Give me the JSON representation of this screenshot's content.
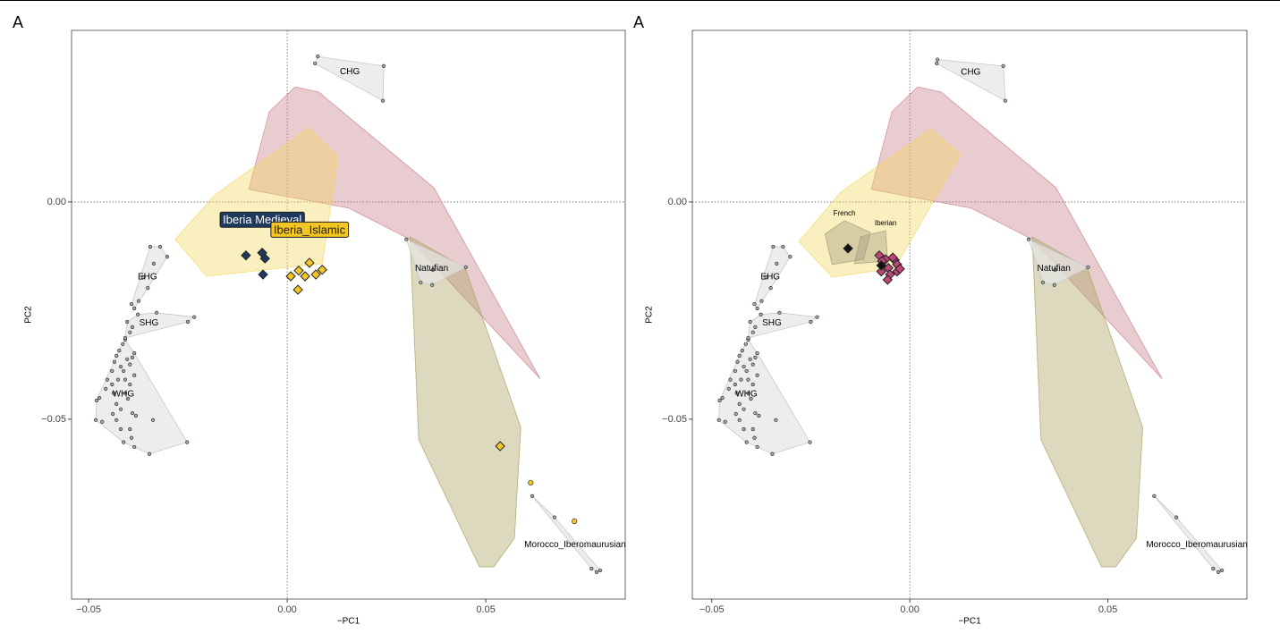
{
  "chart_data": [
    {
      "type": "scatter",
      "title": "A",
      "xlabel": "−PC1",
      "ylabel": "PC2",
      "xlim": [
        -0.0543,
        0.0851
      ],
      "ylim": [
        -0.0914,
        0.0395
      ],
      "xticks": [
        {
          "value": -0.05,
          "label": "−0.05"
        },
        {
          "value": 0,
          "label": "0.00"
        },
        {
          "value": 0.05,
          "label": "0.05"
        }
      ],
      "yticks": [
        {
          "value": -0.05,
          "label": "−0.05"
        },
        {
          "value": 0,
          "label": "0.00"
        }
      ],
      "areas": [
        {
          "color": "#c98088",
          "x": [
            -0.0045,
            0.002,
            0.0079,
            0.0369,
            0.0637,
            0.0309,
            0.0155,
            -0.0097
          ],
          "y": [
            0.0208,
            0.0265,
            0.0253,
            0.0033,
            -0.0407,
            -0.0086,
            -0.0014,
            0.0029
          ]
        },
        {
          "color": "#f2d660",
          "x": [
            -0.0282,
            -0.0203,
            0.0088,
            0.0128,
            0.0054,
            -0.0182
          ],
          "y": [
            -0.0086,
            -0.0171,
            -0.0142,
            0.0105,
            0.0171,
            0.0016
          ]
        },
        {
          "color": "#a8a060",
          "x": [
            0.0309,
            0.0448,
            0.0588,
            0.0572,
            0.052,
            0.0484,
            0.0331
          ],
          "y": [
            -0.008,
            -0.0152,
            -0.0519,
            -0.0774,
            -0.084,
            -0.084,
            -0.0547
          ]
        }
      ],
      "series": [
        {
          "name": "WHG",
          "color": "#9aaca4",
          "marker": "circle",
          "hull": true,
          "x": [
            -0.048,
            -0.0473,
            -0.0482,
            -0.0466,
            -0.0457,
            -0.0453,
            -0.0441,
            -0.0435,
            -0.043,
            -0.0423,
            -0.0414,
            -0.0408,
            -0.0419,
            -0.0412,
            -0.0403,
            -0.0396,
            -0.039,
            -0.0385,
            -0.0437,
            -0.043,
            -0.0419,
            -0.0439,
            -0.0408,
            -0.0401,
            -0.039,
            -0.0381,
            -0.0396,
            -0.0419,
            -0.043,
            -0.0412,
            -0.0392,
            -0.0385,
            -0.0347,
            -0.0338,
            -0.0252,
            -0.0396,
            -0.0441,
            -0.0408,
            -0.0385,
            -0.0426
          ],
          "y": [
            -0.0457,
            -0.0451,
            -0.0502,
            -0.0506,
            -0.043,
            -0.0409,
            -0.0389,
            -0.0368,
            -0.0354,
            -0.0342,
            -0.0327,
            -0.0317,
            -0.0379,
            -0.0389,
            -0.0362,
            -0.0374,
            -0.0358,
            -0.0348,
            -0.044,
            -0.0465,
            -0.0477,
            -0.0488,
            -0.044,
            -0.0453,
            -0.0486,
            -0.0492,
            -0.0523,
            -0.0523,
            -0.0502,
            -0.0553,
            -0.0543,
            -0.0564,
            -0.058,
            -0.0502,
            -0.0553,
            -0.042,
            -0.042,
            -0.0409,
            -0.0399,
            -0.0409
          ]
        },
        {
          "name": "EHG",
          "color": "#9aaca4",
          "marker": "circle",
          "hull": true,
          "x": [
            -0.0345,
            -0.032,
            -0.0302,
            -0.0336,
            -0.0363,
            -0.0351,
            -0.0374,
            -0.0385,
            -0.0392
          ],
          "y": [
            -0.0103,
            -0.0103,
            -0.0126,
            -0.0142,
            -0.0173,
            -0.0198,
            -0.0228,
            -0.0245,
            -0.0235
          ]
        },
        {
          "name": "SHG",
          "color": "#9aaca4",
          "marker": "circle",
          "hull": true,
          "x": [
            -0.0403,
            -0.039,
            -0.0396,
            -0.0408,
            -0.0376,
            -0.025,
            -0.0234,
            -0.0329
          ],
          "y": [
            -0.0276,
            -0.0288,
            -0.03,
            -0.0313,
            -0.0259,
            -0.0276,
            -0.0265,
            -0.0255
          ]
        },
        {
          "name": "CHG",
          "color": "#9aaca4",
          "marker": "circle",
          "hull": true,
          "x": [
            0.0077,
            0.0243,
            0.0241,
            0.007
          ],
          "y": [
            0.0335,
            0.0313,
            0.0233,
            0.0319
          ]
        },
        {
          "name": "Natufian",
          "color": "#9aaca4",
          "marker": "circle",
          "hull": true,
          "x": [
            0.03,
            0.0367,
            0.045,
            0.0336,
            0.0365
          ],
          "y": [
            -0.0086,
            -0.0156,
            -0.015,
            -0.0185,
            -0.0191
          ]
        },
        {
          "name": "Morocco_Iberomaurusian",
          "color": "#9aaca4",
          "marker": "circle",
          "hull": true,
          "x": [
            0.0617,
            0.0673,
            0.0766,
            0.0779,
            0.0788
          ],
          "y": [
            -0.0677,
            -0.0726,
            -0.0844,
            -0.0852,
            -0.0848
          ]
        },
        {
          "color": "#f3c623",
          "marker": "circle",
          "x": [
            0.0613,
            0.0723
          ],
          "y": [
            -0.0646,
            -0.0735
          ]
        },
        {
          "name": "Iberia Medieval",
          "color": "#1f3a5f",
          "marker": "diamond",
          "label_box": true,
          "label_color": "#ffffff",
          "x": [
            -0.0063,
            -0.0104,
            -0.0056,
            -0.0061
          ],
          "y": [
            -0.0117,
            -0.0123,
            -0.013,
            -0.0167
          ]
        },
        {
          "name": "Iberia_Islamic",
          "color": "#f3c623",
          "marker": "diamond",
          "label_box": true,
          "label_color": "#1a1a1a",
          "x": [
            0.0056,
            0.0009,
            0.0029,
            0.0045,
            0.0072,
            0.0088,
            0.0027,
            0.0536
          ],
          "y": [
            -0.014,
            -0.0171,
            -0.0158,
            -0.0171,
            -0.0167,
            -0.0156,
            -0.0202,
            -0.0562
          ]
        }
      ]
    },
    {
      "type": "scatter",
      "title": "A",
      "xlabel": "−PC1",
      "ylabel": "PC2",
      "xlim": [
        -0.0549,
        0.0851
      ],
      "ylim": [
        -0.0914,
        0.0395
      ],
      "xticks": [
        {
          "value": -0.05,
          "label": "−0.05"
        },
        {
          "value": 0,
          "label": "0.00"
        },
        {
          "value": 0.05,
          "label": "0.05"
        }
      ],
      "yticks": [
        {
          "value": -0.05,
          "label": "−0.05"
        },
        {
          "value": 0,
          "label": "0.00"
        }
      ],
      "areas": [
        {
          "color": "#c98088",
          "x": [
            -0.0045,
            0.002,
            0.0079,
            0.0369,
            0.0637,
            0.0309,
            0.0155,
            -0.0097
          ],
          "y": [
            0.0208,
            0.0265,
            0.0253,
            0.0033,
            -0.0407,
            -0.0086,
            -0.0014,
            0.0029
          ]
        },
        {
          "color": "#f2d660",
          "x": [
            -0.028,
            -0.0196,
            -0.0038,
            0.0129,
            0.0052,
            -0.0174
          ],
          "y": [
            -0.0091,
            -0.0173,
            -0.0152,
            0.0111,
            0.0167,
            0.0023
          ]
        },
        {
          "color": "#a8a060",
          "x": [
            0.0309,
            0.0448,
            0.0588,
            0.0572,
            0.052,
            0.0484,
            0.0331
          ],
          "y": [
            -0.008,
            -0.0152,
            -0.0519,
            -0.0774,
            -0.084,
            -0.084,
            -0.0547
          ]
        },
        {
          "name": "French",
          "color": "#a09a80",
          "x": [
            -0.0214,
            -0.0165,
            -0.0099,
            -0.0117,
            -0.0196
          ],
          "y": [
            -0.0074,
            -0.0043,
            -0.007,
            -0.0132,
            -0.0144
          ]
        },
        {
          "name": "Iberian",
          "color": "#a09a80",
          "x": [
            -0.0124,
            -0.0061,
            -0.0056,
            -0.014
          ],
          "y": [
            -0.008,
            -0.0066,
            -0.0136,
            -0.0142
          ]
        }
      ],
      "series": [
        {
          "name": "WHG",
          "color": "#9aaca4",
          "marker": "circle",
          "hull": true,
          "x": [
            -0.048,
            -0.0473,
            -0.0482,
            -0.0466,
            -0.0457,
            -0.0453,
            -0.0441,
            -0.0435,
            -0.043,
            -0.0423,
            -0.0414,
            -0.0408,
            -0.0419,
            -0.0412,
            -0.0403,
            -0.0396,
            -0.039,
            -0.0385,
            -0.0437,
            -0.043,
            -0.0419,
            -0.0439,
            -0.0408,
            -0.0401,
            -0.039,
            -0.0381,
            -0.0396,
            -0.0419,
            -0.043,
            -0.0412,
            -0.0392,
            -0.0385,
            -0.0347,
            -0.0338,
            -0.0252,
            -0.0396,
            -0.0441,
            -0.0408,
            -0.0385,
            -0.0426
          ],
          "y": [
            -0.0457,
            -0.0451,
            -0.0502,
            -0.0506,
            -0.043,
            -0.0409,
            -0.0389,
            -0.0368,
            -0.0354,
            -0.0342,
            -0.0327,
            -0.0317,
            -0.0379,
            -0.0389,
            -0.0362,
            -0.0374,
            -0.0358,
            -0.0348,
            -0.044,
            -0.0465,
            -0.0477,
            -0.0488,
            -0.044,
            -0.0453,
            -0.0486,
            -0.0492,
            -0.0523,
            -0.0523,
            -0.0502,
            -0.0553,
            -0.0543,
            -0.0564,
            -0.058,
            -0.0502,
            -0.0553,
            -0.042,
            -0.042,
            -0.0409,
            -0.0399,
            -0.0409
          ]
        },
        {
          "name": "EHG",
          "color": "#9aaca4",
          "marker": "circle",
          "hull": true,
          "x": [
            -0.0345,
            -0.032,
            -0.0302,
            -0.0336,
            -0.0363,
            -0.0351,
            -0.0374,
            -0.0385,
            -0.0392
          ],
          "y": [
            -0.0103,
            -0.0103,
            -0.0126,
            -0.0142,
            -0.0173,
            -0.0198,
            -0.0228,
            -0.0245,
            -0.0235
          ]
        },
        {
          "name": "SHG",
          "color": "#9aaca4",
          "marker": "circle",
          "hull": true,
          "x": [
            -0.0403,
            -0.039,
            -0.0396,
            -0.0408,
            -0.0376,
            -0.025,
            -0.0234,
            -0.0329
          ],
          "y": [
            -0.0276,
            -0.0288,
            -0.03,
            -0.0313,
            -0.0259,
            -0.0276,
            -0.0265,
            -0.0255
          ]
        },
        {
          "name": "CHG",
          "color": "#9aaca4",
          "marker": "circle",
          "hull": true,
          "x": [
            0.007,
            0.0236,
            0.0241,
            0.0068
          ],
          "y": [
            0.0328,
            0.0313,
            0.0233,
            0.0319
          ]
        },
        {
          "name": "Natufian",
          "color": "#9aaca4",
          "marker": "circle",
          "hull": true,
          "x": [
            0.03,
            0.0367,
            0.045,
            0.0336,
            0.0365
          ],
          "y": [
            -0.0086,
            -0.0156,
            -0.015,
            -0.0185,
            -0.0191
          ]
        },
        {
          "name": "Morocco_Iberomaurusian",
          "color": "#9aaca4",
          "marker": "circle",
          "hull": true,
          "x": [
            0.0617,
            0.0673,
            0.0766,
            0.0779,
            0.0788
          ],
          "y": [
            -0.0677,
            -0.0726,
            -0.0844,
            -0.0852,
            -0.0848
          ]
        },
        {
          "color": "#c0457a",
          "marker": "diamond",
          "x": [
            -0.0077,
            -0.0061,
            -0.0038,
            -0.0032,
            -0.0054,
            -0.0072,
            -0.005,
            -0.0032,
            -0.0025,
            -0.0056,
            -0.007,
            -0.0043
          ],
          "y": [
            -0.0123,
            -0.0132,
            -0.0134,
            -0.0144,
            -0.0152,
            -0.016,
            -0.0167,
            -0.016,
            -0.0154,
            -0.0179,
            -0.0136,
            -0.0128
          ]
        },
        {
          "color": "#111111",
          "marker": "diamond",
          "x": [
            -0.0156,
            -0.0072
          ],
          "y": [
            -0.0107,
            -0.0146
          ]
        }
      ]
    }
  ]
}
